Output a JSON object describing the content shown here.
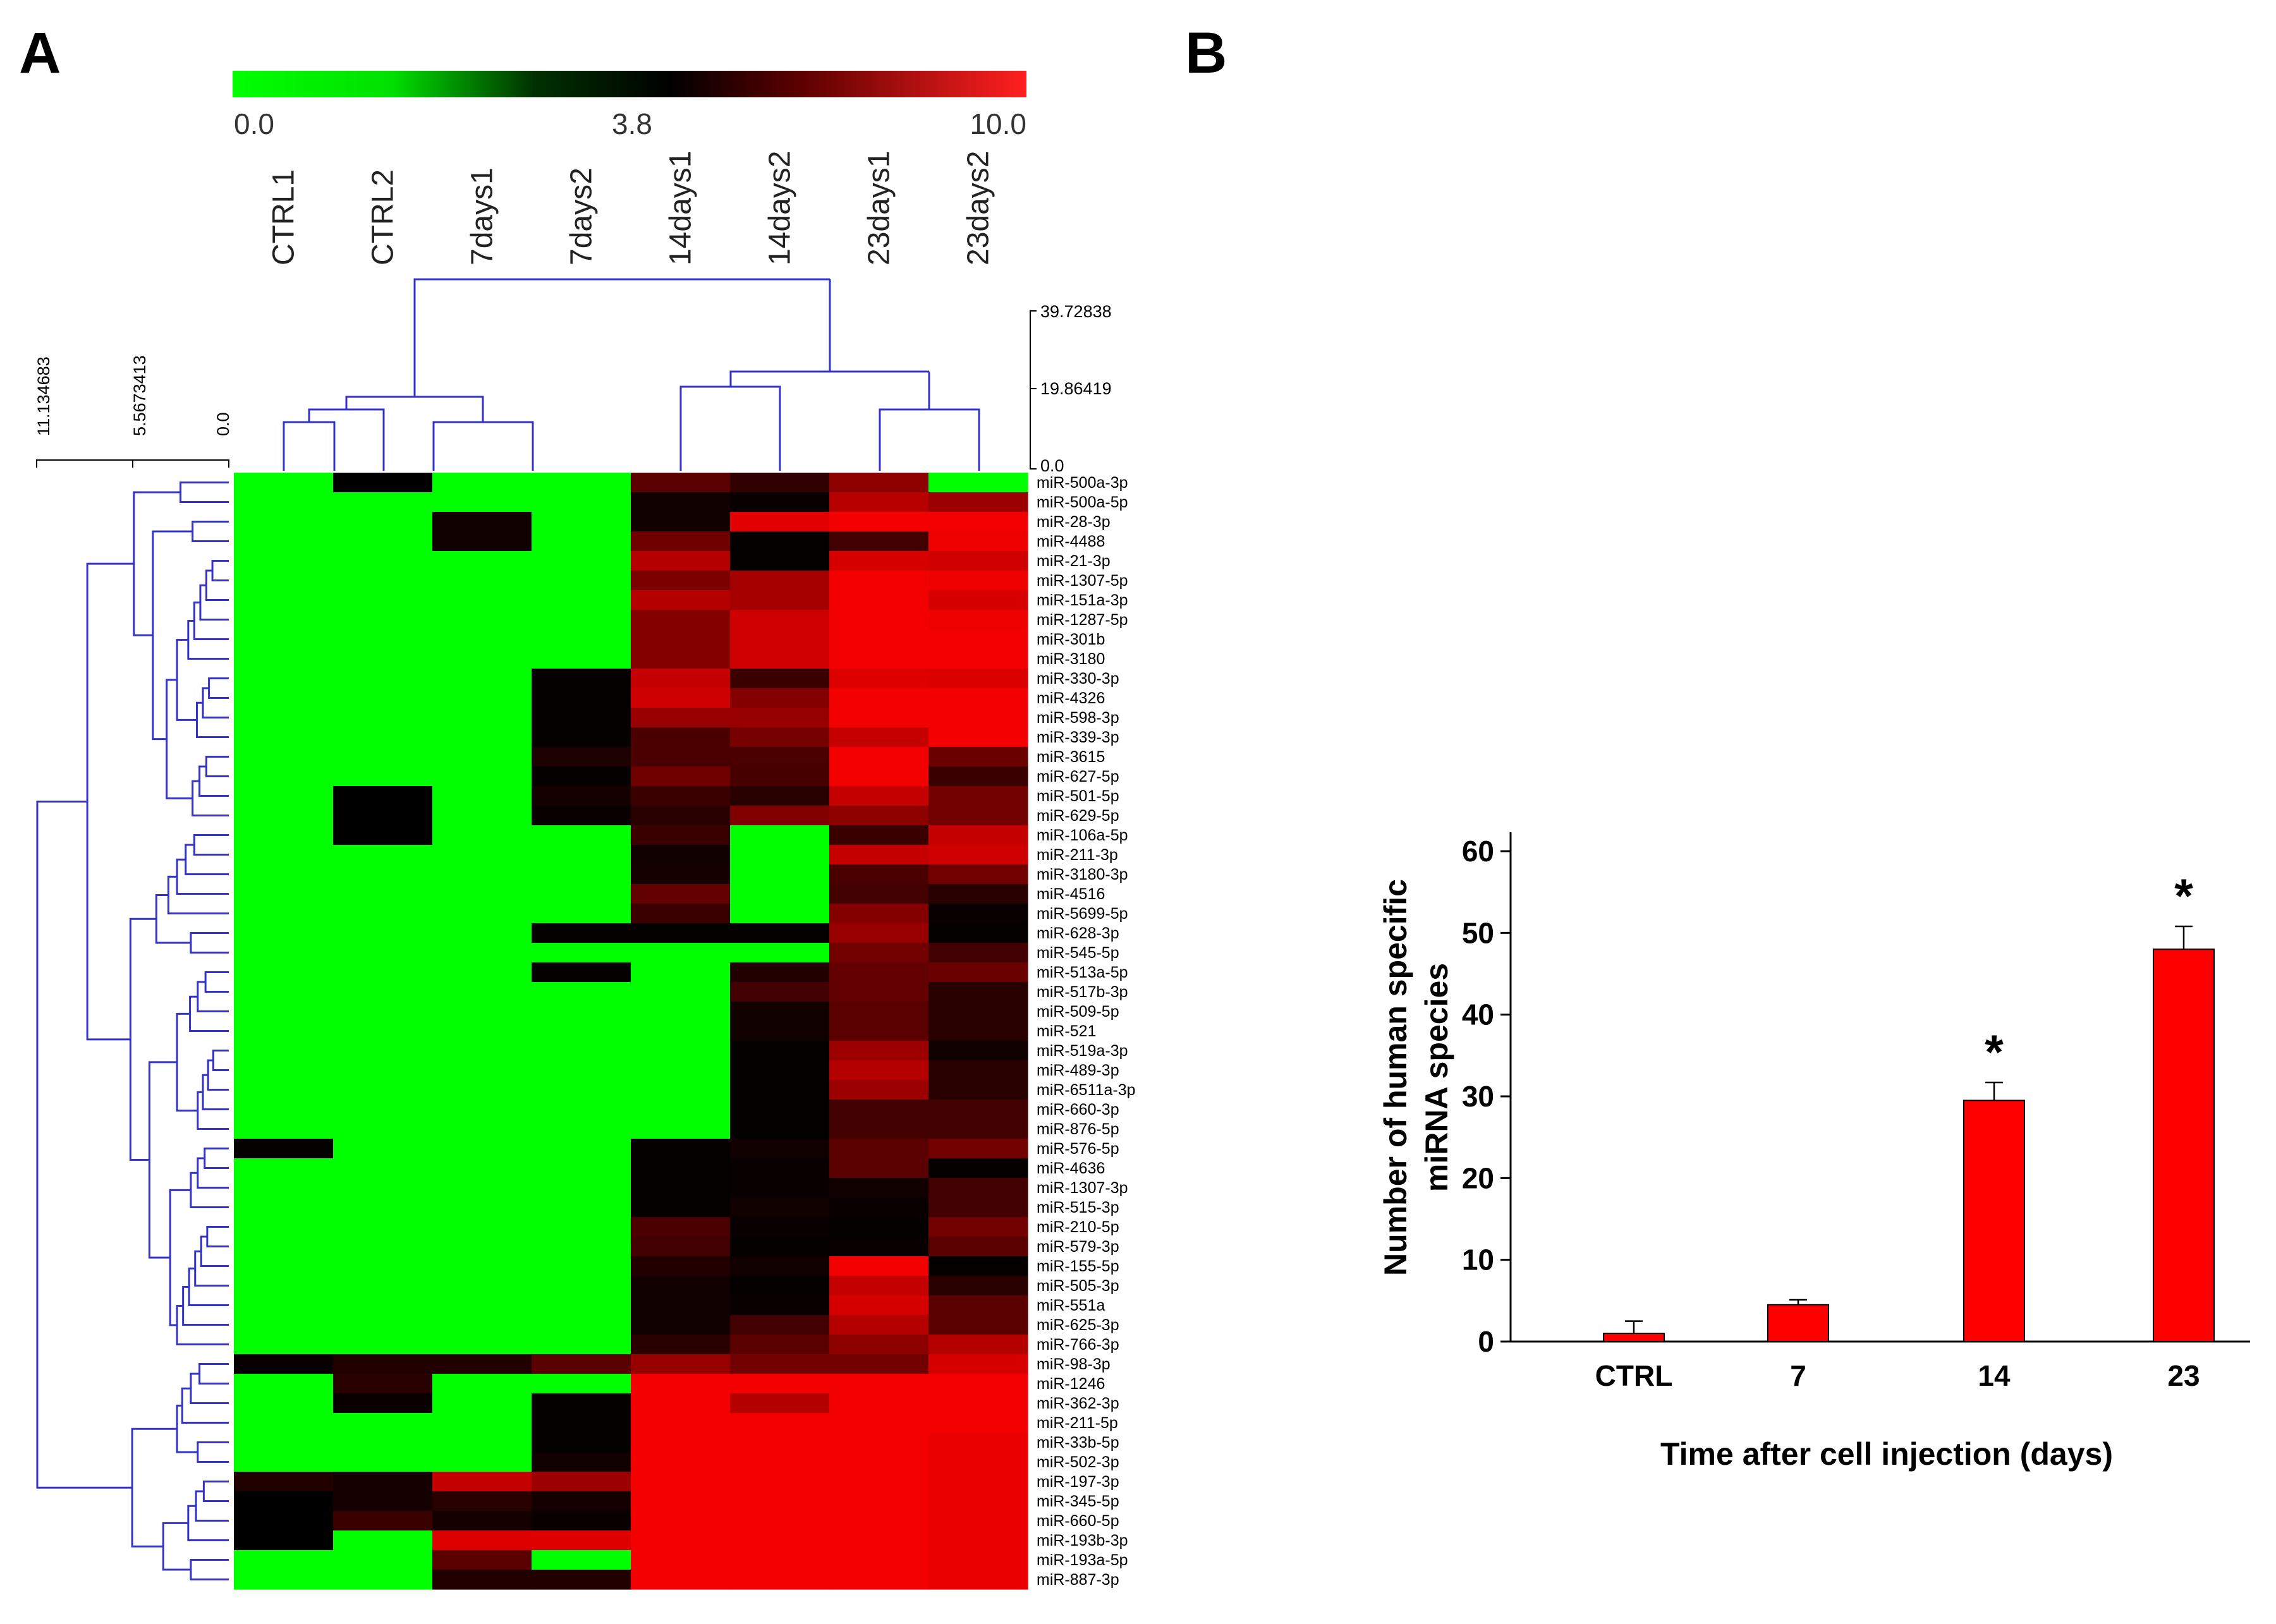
{
  "panels": {
    "a": "A",
    "b": "B"
  },
  "colors": {
    "low": "#00ff00",
    "mid": "#000000",
    "high": "#ff0000",
    "tree": "#3333cc",
    "bar": "#ff0000"
  },
  "chart_data": [
    {
      "type": "heatmap",
      "panel": "A",
      "colorbar": {
        "min": 0.0,
        "mid": 3.8,
        "max": 10.0,
        "labels": [
          "0.0",
          "3.8",
          "10.0"
        ]
      },
      "columns": [
        "CTRL1",
        "CTRL2",
        "7days1",
        "7days2",
        "14days1",
        "14days2",
        "23days1",
        "23days2"
      ],
      "column_dendrogram_scale": [
        "39.72838",
        "19.86419",
        "0.0"
      ],
      "row_dendrogram_scale": [
        "11.134683",
        "5.5673413",
        "0.0"
      ],
      "rows": [
        "miR-500a-3p",
        "miR-500a-5p",
        "miR-28-3p",
        "miR-4488",
        "miR-21-3p",
        "miR-1307-5p",
        "miR-151a-3p",
        "miR-1287-5p",
        "miR-301b",
        "miR-3180",
        "miR-330-3p",
        "miR-4326",
        "miR-598-3p",
        "miR-339-3p",
        "miR-3615",
        "miR-627-5p",
        "miR-501-5p",
        "miR-629-5p",
        "miR-106a-5p",
        "miR-211-3p",
        "miR-3180-3p",
        "miR-4516",
        "miR-5699-5p",
        "miR-628-3p",
        "miR-545-5p",
        "miR-513a-5p",
        "miR-517b-3p",
        "miR-509-5p",
        "miR-521",
        "miR-519a-3p",
        "miR-489-3p",
        "miR-6511a-3p",
        "miR-660-3p",
        "miR-876-5p",
        "miR-576-5p",
        "miR-4636",
        "miR-1307-3p",
        "miR-515-3p",
        "miR-210-5p",
        "miR-579-3p",
        "miR-155-5p",
        "miR-505-3p",
        "miR-551a",
        "miR-625-3p",
        "miR-766-3p",
        "miR-98-3p",
        "miR-1246",
        "miR-362-3p",
        "miR-211-5p",
        "miR-33b-5p",
        "miR-502-3p",
        "miR-197-3p",
        "miR-345-5p",
        "miR-660-5p",
        "miR-193b-3p",
        "miR-193a-5p",
        "miR-887-3p"
      ],
      "values": [
        [
          0.0,
          3.8,
          0.0,
          0.0,
          6.0,
          5.0,
          7.2,
          0.0
        ],
        [
          0.0,
          0.0,
          0.0,
          0.0,
          4.2,
          4.0,
          8.3,
          7.6
        ],
        [
          0.0,
          0.0,
          4.2,
          0.0,
          4.2,
          9.3,
          9.7,
          9.7
        ],
        [
          0.0,
          0.0,
          4.2,
          0.0,
          6.5,
          3.9,
          5.4,
          9.6
        ],
        [
          0.0,
          0.0,
          0.0,
          0.0,
          8.2,
          3.9,
          9.0,
          8.8
        ],
        [
          0.0,
          0.0,
          0.0,
          0.0,
          6.8,
          7.8,
          9.7,
          9.6
        ],
        [
          0.0,
          0.0,
          0.0,
          0.0,
          8.2,
          7.8,
          9.7,
          9.0
        ],
        [
          0.0,
          0.0,
          0.0,
          0.0,
          7.0,
          8.8,
          9.7,
          9.6
        ],
        [
          0.0,
          0.0,
          0.0,
          0.0,
          7.0,
          8.8,
          9.7,
          9.7
        ],
        [
          0.0,
          0.0,
          0.0,
          0.0,
          7.0,
          8.8,
          9.7,
          9.7
        ],
        [
          0.0,
          0.0,
          0.0,
          3.9,
          8.6,
          5.2,
          9.2,
          9.1
        ],
        [
          0.0,
          0.0,
          0.0,
          3.9,
          8.8,
          7.0,
          9.7,
          9.7
        ],
        [
          0.0,
          0.0,
          0.0,
          3.9,
          7.5,
          7.5,
          9.7,
          9.7
        ],
        [
          0.0,
          0.0,
          0.0,
          3.9,
          5.6,
          6.7,
          8.6,
          9.7
        ],
        [
          0.0,
          0.0,
          0.0,
          4.5,
          5.6,
          5.6,
          9.7,
          6.4
        ],
        [
          0.0,
          0.0,
          0.0,
          3.9,
          6.5,
          5.5,
          9.7,
          5.2
        ],
        [
          0.0,
          3.8,
          0.0,
          4.3,
          5.2,
          4.8,
          8.6,
          6.6
        ],
        [
          0.0,
          3.8,
          0.0,
          4.0,
          4.8,
          6.9,
          7.2,
          6.6
        ],
        [
          0.0,
          3.8,
          0.0,
          0.0,
          5.2,
          0.0,
          5.2,
          8.6
        ],
        [
          0.0,
          0.0,
          0.0,
          0.0,
          4.2,
          0.0,
          8.6,
          8.8
        ],
        [
          0.0,
          0.0,
          0.0,
          0.0,
          4.3,
          0.0,
          5.6,
          6.6
        ],
        [
          0.0,
          0.0,
          0.0,
          0.0,
          6.2,
          0.0,
          5.4,
          4.8
        ],
        [
          0.0,
          0.0,
          0.0,
          0.0,
          5.2,
          0.0,
          7.0,
          4.0
        ],
        [
          0.0,
          0.0,
          0.0,
          3.9,
          3.9,
          3.9,
          7.5,
          3.9
        ],
        [
          0.0,
          0.0,
          0.0,
          0.0,
          0.0,
          0.0,
          6.6,
          5.4
        ],
        [
          0.0,
          0.0,
          0.0,
          3.9,
          0.0,
          4.6,
          6.2,
          6.4
        ],
        [
          0.0,
          0.0,
          0.0,
          0.0,
          0.0,
          5.4,
          6.2,
          4.8
        ],
        [
          0.0,
          0.0,
          0.0,
          0.0,
          0.0,
          4.2,
          6.0,
          4.8
        ],
        [
          0.0,
          0.0,
          0.0,
          0.0,
          0.0,
          4.2,
          6.0,
          4.8
        ],
        [
          0.0,
          0.0,
          0.0,
          0.0,
          0.0,
          3.9,
          7.6,
          4.2
        ],
        [
          0.0,
          0.0,
          0.0,
          0.0,
          0.0,
          3.9,
          8.2,
          4.8
        ],
        [
          0.0,
          0.0,
          0.0,
          0.0,
          0.0,
          3.9,
          7.6,
          4.8
        ],
        [
          0.0,
          0.0,
          0.0,
          0.0,
          0.0,
          3.9,
          5.4,
          5.4
        ],
        [
          0.0,
          0.0,
          0.0,
          0.0,
          0.0,
          3.9,
          5.4,
          5.4
        ],
        [
          3.9,
          0.0,
          0.0,
          0.0,
          3.9,
          4.2,
          6.0,
          6.6
        ],
        [
          0.0,
          0.0,
          0.0,
          0.0,
          3.9,
          4.0,
          6.0,
          3.9
        ],
        [
          0.0,
          0.0,
          0.0,
          0.0,
          3.9,
          4.0,
          4.2,
          5.4
        ],
        [
          0.0,
          0.0,
          0.0,
          0.0,
          3.9,
          4.2,
          4.0,
          5.4
        ],
        [
          0.0,
          0.0,
          0.0,
          0.0,
          5.6,
          4.0,
          3.9,
          6.6
        ],
        [
          0.0,
          0.0,
          0.0,
          0.0,
          5.4,
          3.9,
          4.0,
          6.0
        ],
        [
          0.0,
          0.0,
          0.0,
          0.0,
          4.6,
          4.2,
          9.7,
          3.9
        ],
        [
          0.0,
          0.0,
          0.0,
          0.0,
          4.2,
          3.9,
          8.6,
          4.8
        ],
        [
          0.0,
          0.0,
          0.0,
          0.0,
          4.2,
          4.0,
          9.0,
          6.0
        ],
        [
          0.0,
          0.0,
          0.0,
          0.0,
          4.2,
          5.4,
          8.2,
          6.0
        ],
        [
          0.0,
          0.0,
          0.0,
          0.0,
          4.8,
          6.0,
          7.2,
          8.2
        ],
        [
          4.0,
          4.6,
          4.6,
          6.0,
          7.5,
          6.6,
          6.6,
          9.0
        ],
        [
          0.0,
          4.8,
          0.0,
          0.0,
          9.7,
          9.7,
          9.7,
          9.7
        ],
        [
          0.0,
          4.0,
          0.0,
          3.9,
          9.7,
          8.2,
          9.7,
          9.7
        ],
        [
          0.0,
          0.0,
          0.0,
          3.9,
          9.7,
          9.7,
          9.7,
          9.7
        ],
        [
          0.0,
          0.0,
          0.0,
          3.9,
          9.7,
          9.7,
          9.7,
          9.5
        ],
        [
          0.0,
          0.0,
          0.0,
          4.2,
          9.7,
          9.7,
          9.7,
          9.5
        ],
        [
          4.6,
          4.3,
          8.6,
          7.6,
          9.7,
          9.7,
          9.7,
          9.5
        ],
        [
          3.8,
          4.3,
          4.8,
          4.3,
          9.7,
          9.7,
          9.7,
          9.5
        ],
        [
          3.8,
          5.2,
          4.3,
          4.0,
          9.7,
          9.7,
          9.7,
          9.5
        ],
        [
          3.8,
          0.0,
          9.2,
          9.2,
          9.7,
          9.7,
          9.7,
          9.5
        ],
        [
          0.0,
          0.0,
          6.0,
          0.0,
          9.7,
          9.7,
          9.7,
          9.5
        ],
        [
          0.0,
          0.0,
          4.6,
          4.6,
          9.7,
          9.7,
          9.7,
          9.5
        ]
      ]
    },
    {
      "type": "bar",
      "panel": "B",
      "categories": [
        "CTRL",
        "7",
        "14",
        "23"
      ],
      "values": [
        1.0,
        4.5,
        29.5,
        48.0
      ],
      "errors": [
        1.5,
        0.6,
        2.2,
        2.8
      ],
      "significance": [
        "",
        "",
        "*",
        "*"
      ],
      "xlabel": "Time after cell injection (days)",
      "ylabel_lines": [
        "Number of human specific",
        "miRNA species"
      ],
      "ylim": [
        0,
        60
      ],
      "yticks": [
        "0",
        "10",
        "20",
        "30",
        "40",
        "50",
        "60"
      ]
    }
  ]
}
